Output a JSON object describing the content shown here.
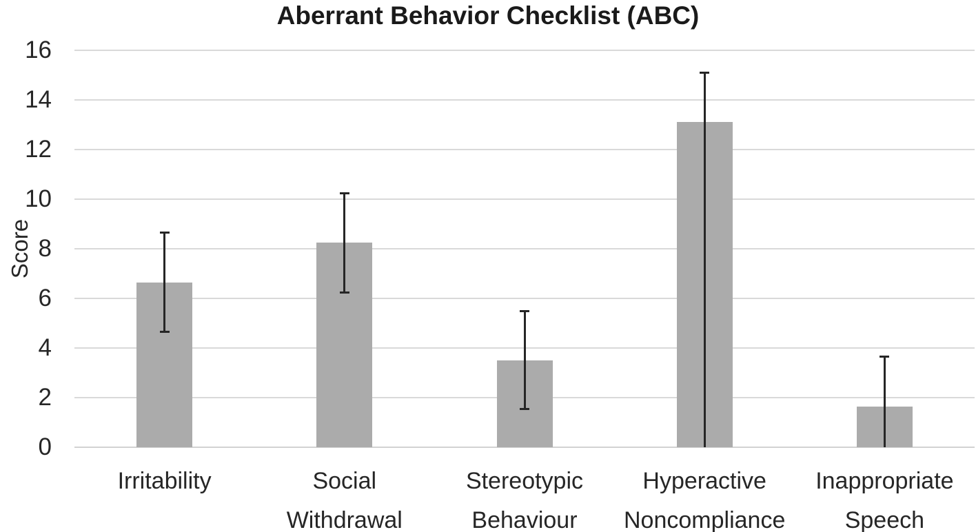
{
  "figure": {
    "title": "Aberrant Behavior Checklist (ABC)"
  },
  "chart_data": {
    "type": "bar",
    "title": "Aberrant Behavior Checklist (ABC)",
    "xlabel": "",
    "ylabel": "Score",
    "ylim": [
      0,
      16
    ],
    "yticks": [
      0,
      2,
      4,
      6,
      8,
      10,
      12,
      14,
      16
    ],
    "grid": true,
    "legend": false,
    "categories": [
      "Irritability",
      "Social Withdrawal",
      "Stereotypic Behaviour",
      "Hyperactive Noncompliance",
      "Inappropriate Speech"
    ],
    "category_label_lines": [
      [
        "Irritability"
      ],
      [
        "Social Withdrawal"
      ],
      [
        "Stereotypic",
        "Behaviour"
      ],
      [
        "Hyperactive",
        "Noncompliance"
      ],
      [
        "Inappropriate",
        "Speech"
      ]
    ],
    "values": [
      6.65,
      8.25,
      3.5,
      13.1,
      1.65
    ],
    "error_bars": {
      "upper": [
        8.65,
        10.25,
        5.5,
        15.1,
        3.65
      ],
      "lower": [
        4.65,
        6.25,
        1.55,
        0,
        0
      ]
    },
    "colors": {
      "bar": "#ABABAB",
      "error": "#262626",
      "gridline": "#D9D9D9",
      "text": "#262626",
      "background": "#FFFFFF"
    }
  }
}
